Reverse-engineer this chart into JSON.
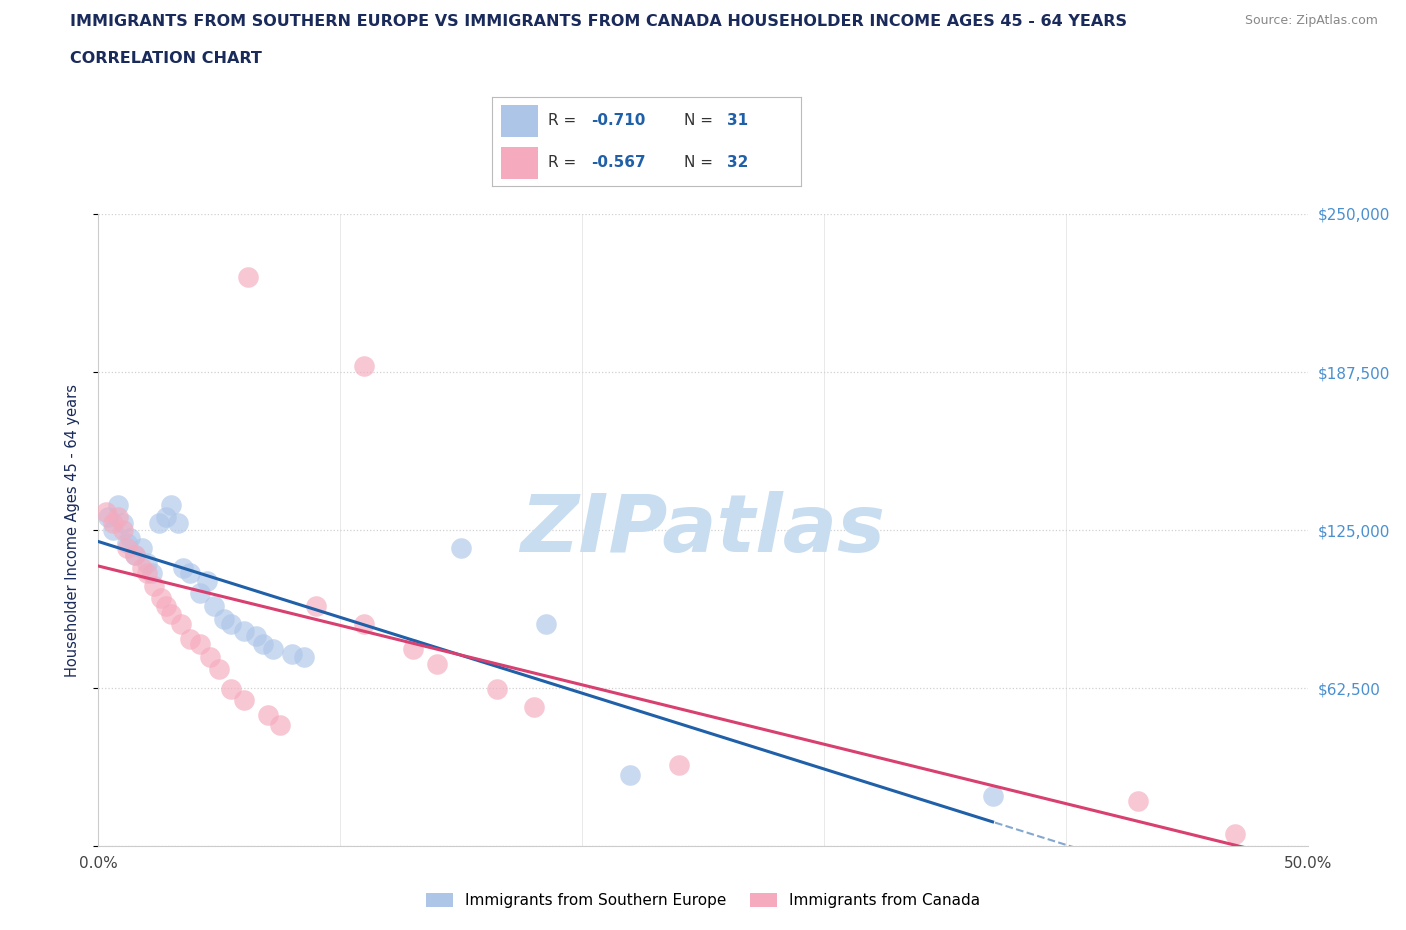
{
  "title_line1": "IMMIGRANTS FROM SOUTHERN EUROPE VS IMMIGRANTS FROM CANADA HOUSEHOLDER INCOME AGES 45 - 64 YEARS",
  "title_line2": "CORRELATION CHART",
  "source_text": "Source: ZipAtlas.com",
  "ylabel": "Householder Income Ages 45 - 64 years",
  "xlim": [
    0.0,
    0.5
  ],
  "ylim": [
    0,
    250000
  ],
  "yticks": [
    0,
    62500,
    125000,
    187500,
    250000
  ],
  "ytick_labels": [
    "",
    "$62,500",
    "$125,000",
    "$187,500",
    "$250,000"
  ],
  "xticks": [
    0.0,
    0.1,
    0.2,
    0.3,
    0.4,
    0.5
  ],
  "xtick_labels": [
    "0.0%",
    "",
    "",
    "",
    "",
    "50.0%"
  ],
  "r_blue": -0.71,
  "n_blue": 31,
  "r_pink": -0.567,
  "n_pink": 32,
  "blue_color": "#adc6e8",
  "pink_color": "#f5aabe",
  "blue_line_color": "#2060a8",
  "pink_line_color": "#d84070",
  "blue_scatter": [
    [
      0.004,
      130000
    ],
    [
      0.006,
      125000
    ],
    [
      0.008,
      135000
    ],
    [
      0.01,
      128000
    ],
    [
      0.012,
      120000
    ],
    [
      0.013,
      122000
    ],
    [
      0.015,
      115000
    ],
    [
      0.018,
      118000
    ],
    [
      0.02,
      112000
    ],
    [
      0.022,
      108000
    ],
    [
      0.025,
      128000
    ],
    [
      0.028,
      130000
    ],
    [
      0.03,
      135000
    ],
    [
      0.033,
      128000
    ],
    [
      0.035,
      110000
    ],
    [
      0.038,
      108000
    ],
    [
      0.042,
      100000
    ],
    [
      0.045,
      105000
    ],
    [
      0.048,
      95000
    ],
    [
      0.052,
      90000
    ],
    [
      0.055,
      88000
    ],
    [
      0.06,
      85000
    ],
    [
      0.065,
      83000
    ],
    [
      0.068,
      80000
    ],
    [
      0.072,
      78000
    ],
    [
      0.08,
      76000
    ],
    [
      0.085,
      75000
    ],
    [
      0.15,
      118000
    ],
    [
      0.185,
      88000
    ],
    [
      0.22,
      28000
    ],
    [
      0.37,
      20000
    ]
  ],
  "pink_scatter": [
    [
      0.003,
      132000
    ],
    [
      0.006,
      128000
    ],
    [
      0.008,
      130000
    ],
    [
      0.01,
      125000
    ],
    [
      0.012,
      118000
    ],
    [
      0.015,
      115000
    ],
    [
      0.018,
      110000
    ],
    [
      0.02,
      108000
    ],
    [
      0.023,
      103000
    ],
    [
      0.026,
      98000
    ],
    [
      0.028,
      95000
    ],
    [
      0.03,
      92000
    ],
    [
      0.034,
      88000
    ],
    [
      0.038,
      82000
    ],
    [
      0.042,
      80000
    ],
    [
      0.046,
      75000
    ],
    [
      0.05,
      70000
    ],
    [
      0.055,
      62000
    ],
    [
      0.06,
      58000
    ],
    [
      0.07,
      52000
    ],
    [
      0.075,
      48000
    ],
    [
      0.09,
      95000
    ],
    [
      0.11,
      88000
    ],
    [
      0.13,
      78000
    ],
    [
      0.14,
      72000
    ],
    [
      0.165,
      62000
    ],
    [
      0.18,
      55000
    ],
    [
      0.24,
      32000
    ],
    [
      0.062,
      225000
    ],
    [
      0.11,
      190000
    ],
    [
      0.43,
      18000
    ],
    [
      0.47,
      5000
    ]
  ],
  "background_color": "#ffffff",
  "grid_color": "#d0d0d0",
  "title_color": "#1a2a5a",
  "axis_label_color": "#1a2a5a",
  "tick_color_right": "#4a90d0",
  "watermark_color": "#c8ddf0",
  "watermark_text": "ZIPatlas"
}
